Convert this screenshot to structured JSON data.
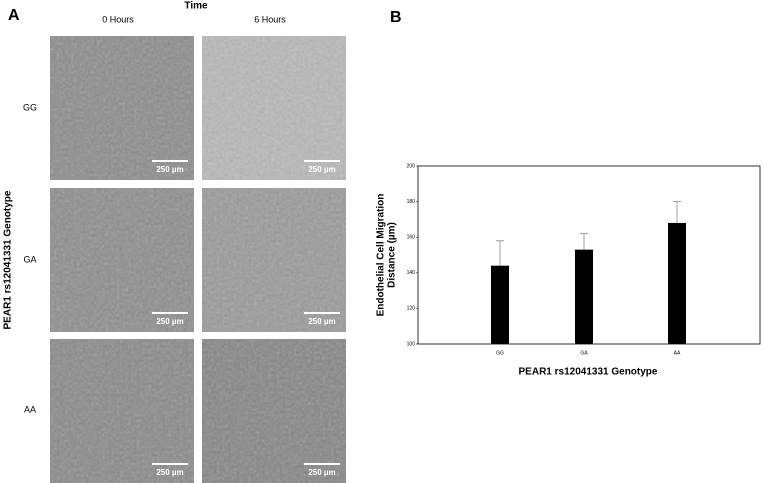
{
  "panel_a": {
    "label": "A",
    "time_label": "Time",
    "columns": [
      "0 Hours",
      "6 Hours"
    ],
    "rows": [
      "GG",
      "GA",
      "AA"
    ],
    "y_label": "PEAR1 rs12041331 Genotype",
    "scale_bar": "250 µm"
  },
  "chart_data": {
    "type": "bar",
    "panel_label": "B",
    "categories": [
      "GG",
      "GA",
      "AA"
    ],
    "values": [
      144,
      153,
      168
    ],
    "errors": [
      14,
      9,
      12
    ],
    "color": "#000000",
    "ylabel": [
      "Endothelial Cell Migration",
      "Distance (µm)"
    ],
    "xlabel": "PEAR1 rs12041331 Genotype",
    "ylim": [
      100,
      200
    ],
    "yticks": [
      100,
      120,
      140,
      160,
      180,
      200
    ]
  }
}
